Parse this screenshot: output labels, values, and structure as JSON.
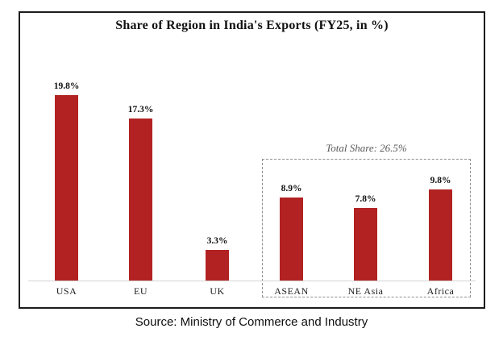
{
  "page": {
    "background_color": "#ffffff",
    "frame_border_color": "#1c1c1c"
  },
  "chart_data": {
    "type": "bar",
    "title": "Share of Region in India's Exports (FY25, in %)",
    "categories": [
      "USA",
      "EU",
      "UK",
      "ASEAN",
      "NE Asia",
      "Africa"
    ],
    "values": [
      19.8,
      17.3,
      3.3,
      8.9,
      7.8,
      9.8
    ],
    "value_labels": [
      "19.8%",
      "17.3%",
      "3.3%",
      "8.9%",
      "7.8%",
      "9.8%"
    ],
    "unit": "%",
    "ylim": [
      0,
      22
    ],
    "grid": false,
    "legend": false,
    "bar_color": "#b22222",
    "axis_line_color": "#d4d4d4",
    "annotations": [
      {
        "text": "Total Share: 26.5%",
        "applies_to": [
          "ASEAN",
          "NE Asia",
          "Africa"
        ],
        "style": "dashed-box",
        "text_color": "#595959",
        "box_border_color": "#8f8f8f"
      }
    ],
    "source": "Source: Ministry of Commerce and Industry"
  }
}
